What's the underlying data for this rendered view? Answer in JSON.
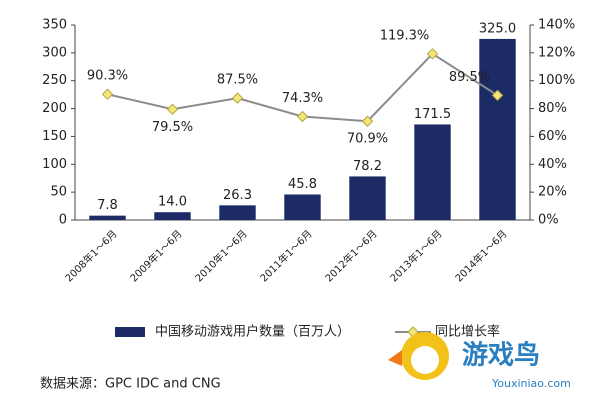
{
  "chart_data": {
    "type": "bar",
    "categories": [
      "2008年1～6月",
      "2009年1～6月",
      "2010年1～6月",
      "2011年1～6月",
      "2012年1～6月",
      "2013年1～6月",
      "2014年1～6月"
    ],
    "series": [
      {
        "name": "中国移动游戏用户数量（百万人）",
        "type": "bar",
        "color": "#1c2a66",
        "values": [
          7.8,
          14.0,
          26.3,
          45.8,
          78.2,
          171.5,
          325.0
        ],
        "value_labels": [
          "7.8",
          "14.0",
          "26.3",
          "45.8",
          "78.2",
          "171.5",
          "325.0"
        ]
      },
      {
        "name": "同比增长率",
        "type": "line",
        "axis": "y2",
        "color": "#8c8c8c",
        "marker_color": "#f2e67a",
        "values": [
          90.3,
          79.5,
          87.5,
          74.3,
          70.9,
          119.3,
          89.5
        ],
        "value_labels": [
          "90.3%",
          "79.5%",
          "87.5%",
          "74.3%",
          "70.9%",
          "119.3%",
          "89.5%"
        ]
      }
    ],
    "ylim": [
      0,
      350
    ],
    "yticks": [
      0,
      50,
      100,
      150,
      200,
      250,
      300,
      350
    ],
    "y2lim": [
      0,
      140
    ],
    "y2ticks": [
      {
        "value": 0,
        "label": "0%"
      },
      {
        "value": 20,
        "label": "20%"
      },
      {
        "value": 40,
        "label": "40%"
      },
      {
        "value": 60,
        "label": "60%"
      },
      {
        "value": 80,
        "label": "80%"
      },
      {
        "value": 100,
        "label": "100%"
      },
      {
        "value": 120,
        "label": "120%"
      },
      {
        "value": 140,
        "label": "140%"
      }
    ],
    "source": "数据来源：GPC IDC and CNG",
    "watermark": {
      "name": "游戏鸟",
      "site": "Youxiniao.com"
    }
  }
}
